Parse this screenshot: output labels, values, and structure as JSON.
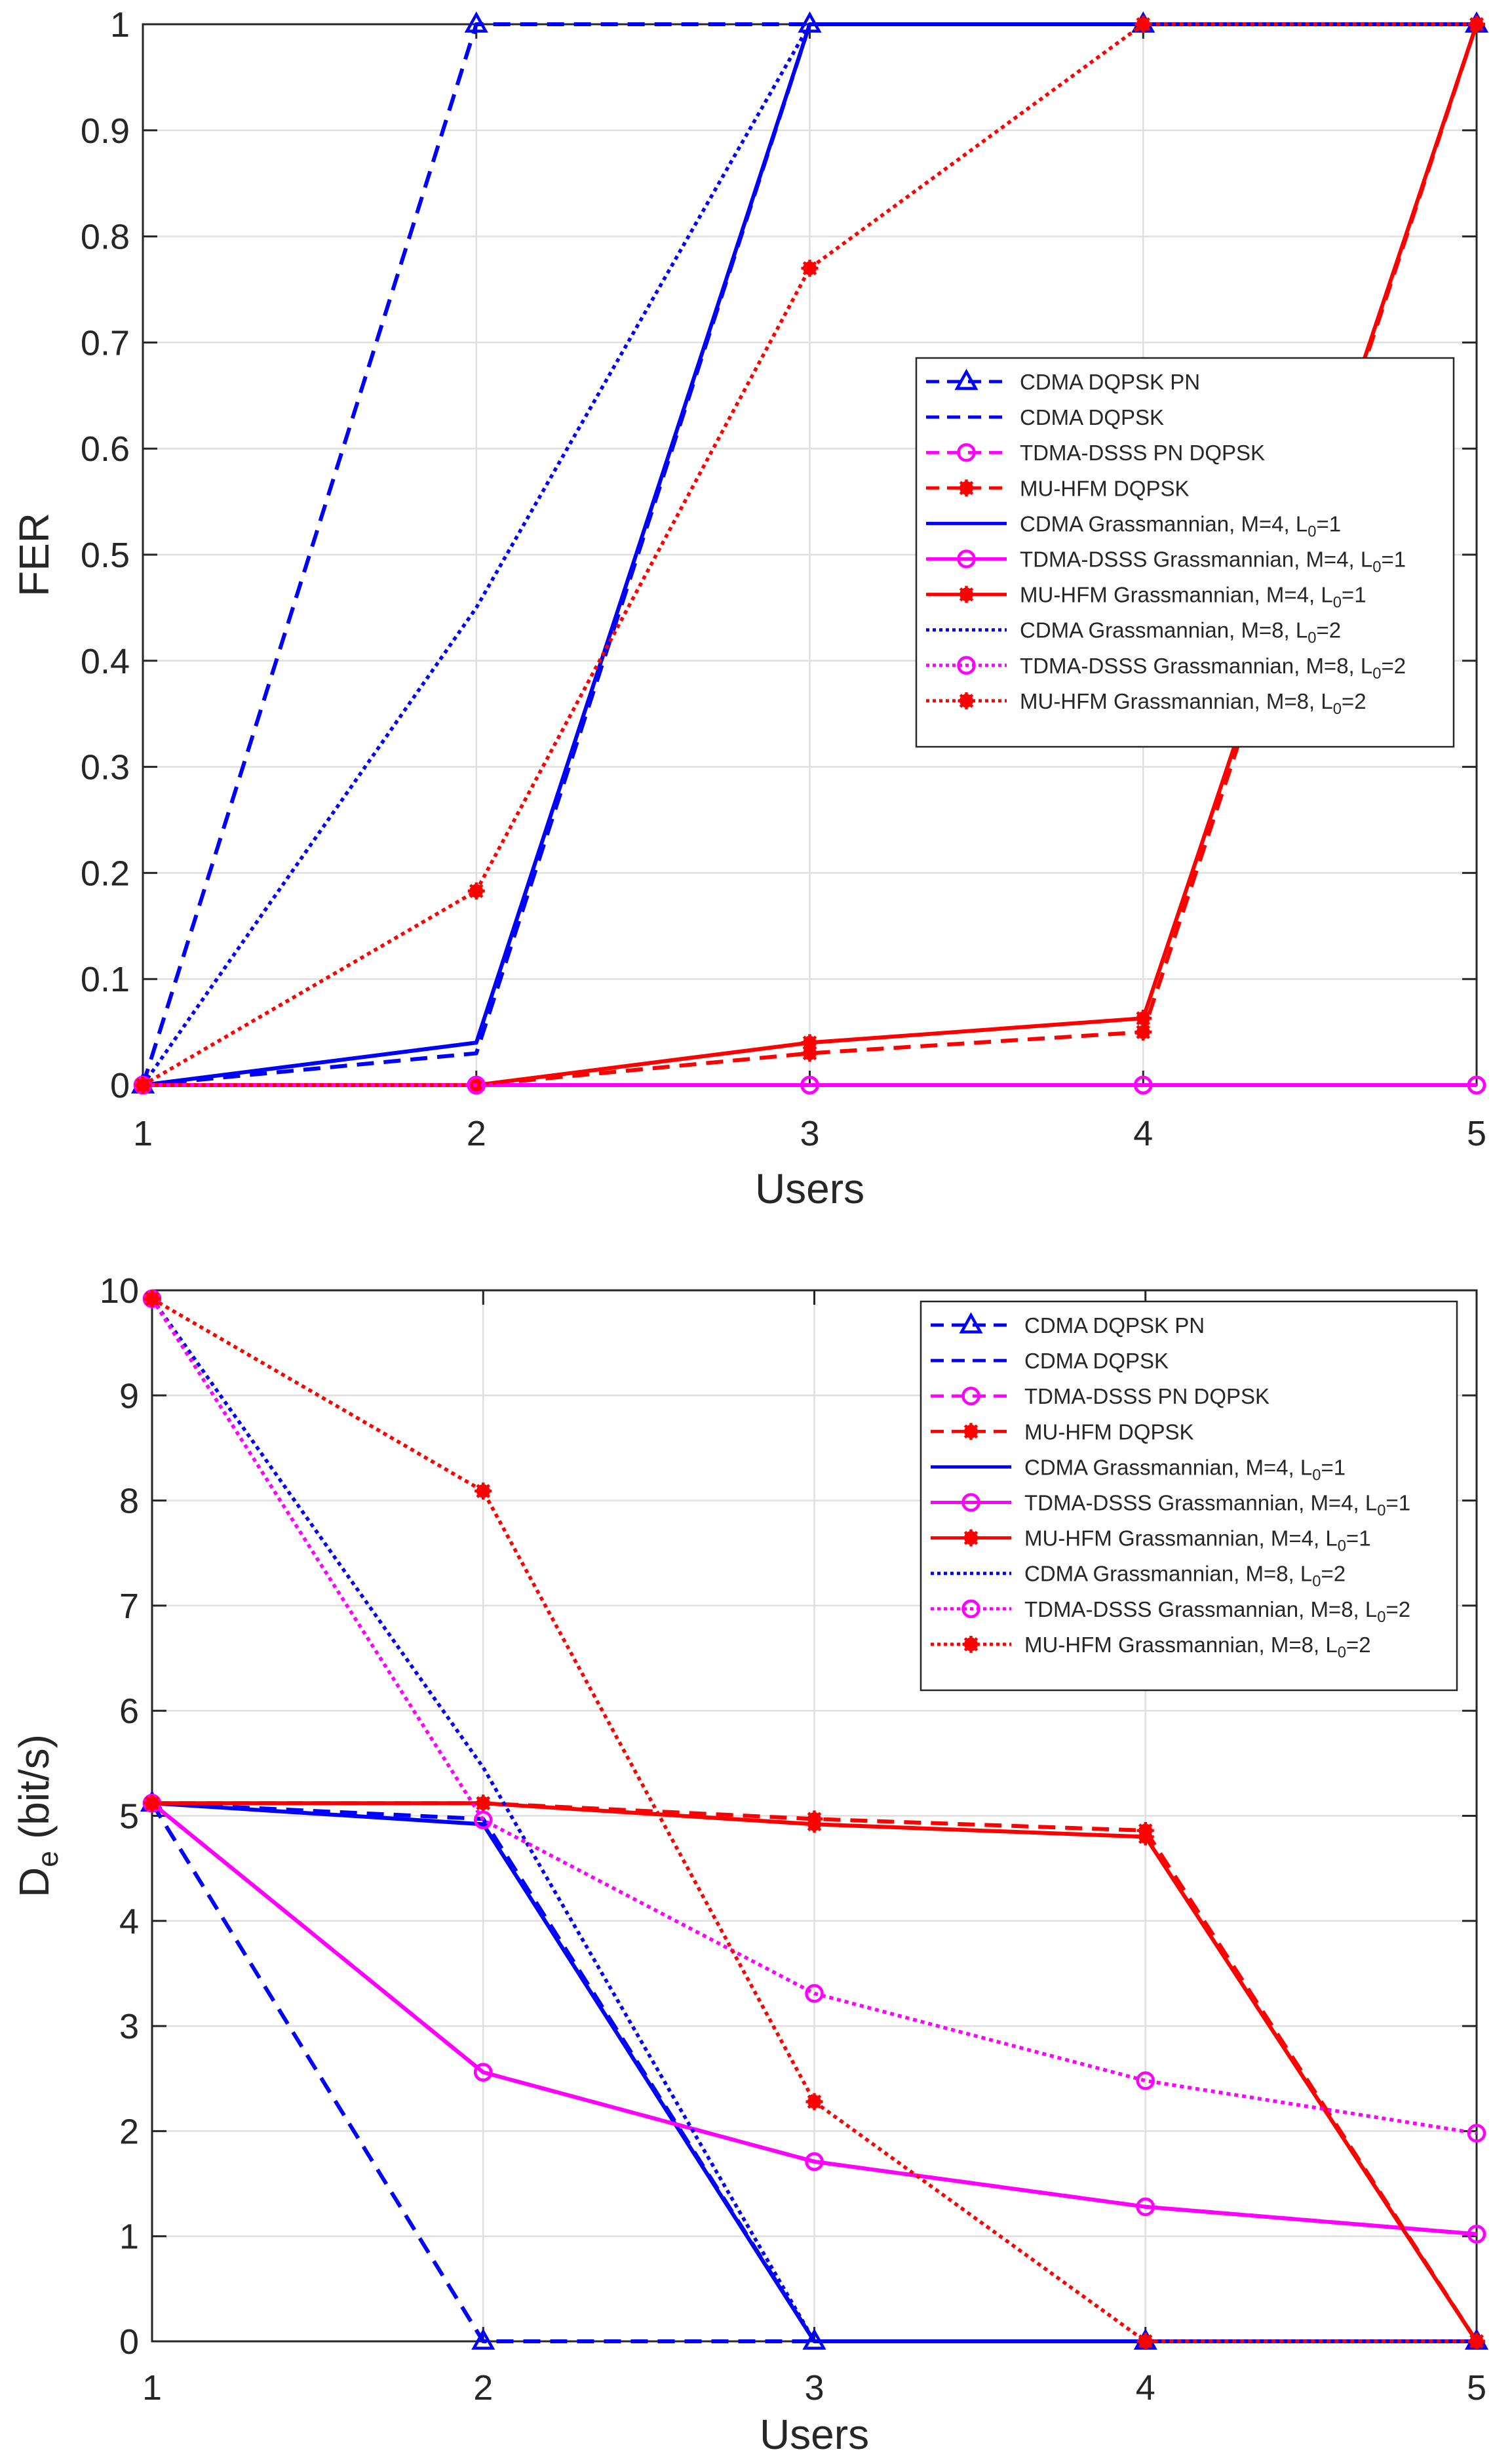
{
  "chart_data": [
    {
      "type": "line",
      "title": "",
      "xlabel": "Users",
      "ylabel": "FER",
      "ylabel_sub": "",
      "ylabel_rest": "",
      "x": [
        1,
        2,
        3,
        4,
        5
      ],
      "xlim": [
        1,
        5
      ],
      "ylim": [
        0,
        1
      ],
      "xticks": [
        1,
        2,
        3,
        4,
        5
      ],
      "yticks": [
        0,
        0.1,
        0.2,
        0.3,
        0.4,
        0.5,
        0.6,
        0.7,
        0.8,
        0.9,
        1
      ],
      "grid": true,
      "legend_position": "right-middle",
      "series": [
        {
          "name": "CDMA DQPSK PN",
          "sub": "",
          "tail": "",
          "color": "#0000ff",
          "dash": "dashed",
          "marker": "triangle",
          "values": [
            0,
            1,
            1,
            1,
            1
          ]
        },
        {
          "name": "CDMA DQPSK",
          "sub": "",
          "tail": "",
          "color": "#0000ff",
          "dash": "dashed",
          "marker": "none",
          "values": [
            0,
            0.03,
            1,
            1,
            1
          ]
        },
        {
          "name": "TDMA-DSSS PN DQPSK",
          "sub": "",
          "tail": "",
          "color": "#ff00ff",
          "dash": "dashed",
          "marker": "circle",
          "values": [
            0,
            0,
            0,
            0,
            0
          ]
        },
        {
          "name": "MU-HFM DQPSK",
          "sub": "",
          "tail": "",
          "color": "#ff0000",
          "dash": "dashed",
          "marker": "star",
          "values": [
            0,
            0,
            0.03,
            0.05,
            1
          ]
        },
        {
          "name": "CDMA Grassmannian, M=4, L",
          "sub": "0",
          "tail": "=1",
          "color": "#0000ff",
          "dash": "solid",
          "marker": "none",
          "values": [
            0,
            0.04,
            1,
            1,
            1
          ]
        },
        {
          "name": "TDMA-DSSS Grassmannian, M=4, L",
          "sub": "0",
          "tail": "=1",
          "color": "#ff00ff",
          "dash": "solid",
          "marker": "circle",
          "values": [
            0,
            0,
            0,
            0,
            0
          ]
        },
        {
          "name": "MU-HFM Grassmannian, M=4, L",
          "sub": "0",
          "tail": "=1",
          "color": "#ff0000",
          "dash": "solid",
          "marker": "star",
          "values": [
            0,
            0,
            0.04,
            0.063,
            1
          ]
        },
        {
          "name": "CDMA Grassmannian, M=8, L",
          "sub": "0",
          "tail": "=2",
          "color": "#0000ff",
          "dash": "dotted",
          "marker": "none",
          "values": [
            0,
            0.45,
            1,
            1,
            1
          ]
        },
        {
          "name": "TDMA-DSSS Grassmannian, M=8, L",
          "sub": "0",
          "tail": "=2",
          "color": "#ff00ff",
          "dash": "dotted",
          "marker": "circle",
          "values": [
            0,
            0,
            0,
            0,
            0
          ]
        },
        {
          "name": "MU-HFM Grassmannian, M=8, L",
          "sub": "0",
          "tail": "=2",
          "color": "#ff0000",
          "dash": "dotted",
          "marker": "star",
          "values": [
            0,
            0.183,
            0.77,
            1,
            1
          ]
        }
      ]
    },
    {
      "type": "line",
      "title": "",
      "xlabel": "Users",
      "ylabel": "D",
      "ylabel_sub": "e",
      "ylabel_rest": " (bit/s)",
      "x": [
        1,
        2,
        3,
        4,
        5
      ],
      "xlim": [
        1,
        5
      ],
      "ylim": [
        0,
        10
      ],
      "xticks": [
        1,
        2,
        3,
        4,
        5
      ],
      "yticks": [
        0,
        1,
        2,
        3,
        4,
        5,
        6,
        7,
        8,
        9,
        10
      ],
      "grid": true,
      "legend_position": "top-right",
      "series": [
        {
          "name": "CDMA DQPSK PN",
          "sub": "",
          "tail": "",
          "color": "#0000ff",
          "dash": "dashed",
          "marker": "triangle",
          "values": [
            5.12,
            0,
            0,
            0,
            0
          ]
        },
        {
          "name": "CDMA DQPSK",
          "sub": "",
          "tail": "",
          "color": "#0000ff",
          "dash": "dashed",
          "marker": "none",
          "values": [
            5.12,
            4.97,
            0,
            0,
            0
          ]
        },
        {
          "name": "TDMA-DSSS PN DQPSK",
          "sub": "",
          "tail": "",
          "color": "#ff00ff",
          "dash": "dashed",
          "marker": "circle",
          "values": [
            5.12,
            2.56,
            1.71,
            1.28,
            1.02
          ]
        },
        {
          "name": "MU-HFM DQPSK",
          "sub": "",
          "tail": "",
          "color": "#ff0000",
          "dash": "dashed",
          "marker": "star",
          "values": [
            5.12,
            5.12,
            4.97,
            4.86,
            0
          ]
        },
        {
          "name": "CDMA Grassmannian, M=4, L",
          "sub": "0",
          "tail": "=1",
          "color": "#0000ff",
          "dash": "solid",
          "marker": "none",
          "values": [
            5.12,
            4.92,
            0,
            0,
            0
          ]
        },
        {
          "name": "TDMA-DSSS Grassmannian, M=4, L",
          "sub": "0",
          "tail": "=1",
          "color": "#ff00ff",
          "dash": "solid",
          "marker": "circle",
          "values": [
            5.12,
            2.56,
            1.71,
            1.28,
            1.02
          ]
        },
        {
          "name": "MU-HFM Grassmannian, M=4, L",
          "sub": "0",
          "tail": "=1",
          "color": "#ff0000",
          "dash": "solid",
          "marker": "star",
          "values": [
            5.12,
            5.12,
            4.92,
            4.8,
            0
          ]
        },
        {
          "name": "CDMA Grassmannian, M=8, L",
          "sub": "0",
          "tail": "=2",
          "color": "#0000ff",
          "dash": "dotted",
          "marker": "none",
          "values": [
            9.92,
            5.46,
            0,
            0,
            0
          ]
        },
        {
          "name": "TDMA-DSSS Grassmannian, M=8, L",
          "sub": "0",
          "tail": "=2",
          "color": "#ff00ff",
          "dash": "dotted",
          "marker": "circle",
          "values": [
            9.92,
            4.96,
            3.31,
            2.48,
            1.98
          ]
        },
        {
          "name": "MU-HFM Grassmannian, M=8, L",
          "sub": "0",
          "tail": "=2",
          "color": "#ff0000",
          "dash": "dotted",
          "marker": "star",
          "values": [
            9.92,
            8.09,
            2.28,
            0,
            0
          ]
        }
      ]
    }
  ]
}
